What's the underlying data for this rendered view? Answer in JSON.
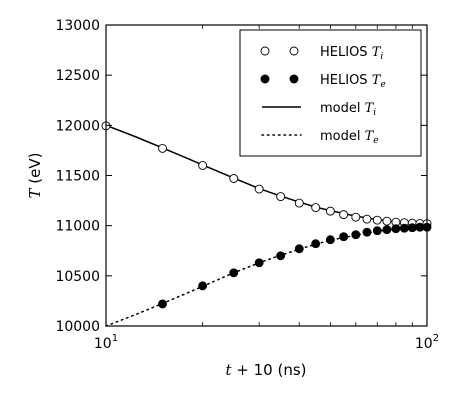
{
  "chart_data": {
    "type": "line",
    "x_scale": "log",
    "xlim": [
      10,
      100
    ],
    "ylim": [
      10000,
      13000
    ],
    "xlabel": {
      "main": "t",
      "rest": " + 10 (ns)"
    },
    "ylabel": {
      "main": "T",
      "rest": " (eV)"
    },
    "x_ticks": [
      {
        "value": 10,
        "base": "10",
        "exp": "1"
      },
      {
        "value": 100,
        "base": "10",
        "exp": "2"
      }
    ],
    "y_ticks": [
      {
        "value": 10000,
        "label": "10000"
      },
      {
        "value": 10500,
        "label": "10500"
      },
      {
        "value": 11000,
        "label": "11000"
      },
      {
        "value": 11500,
        "label": "11500"
      },
      {
        "value": 12000,
        "label": "12000"
      },
      {
        "value": 12500,
        "label": "12500"
      },
      {
        "value": 13000,
        "label": "13000"
      }
    ],
    "grid": false,
    "legend_position": "top-right",
    "series": [
      {
        "name_prefix": "HELIOS ",
        "name_symbol": "T",
        "name_sub": "i",
        "style": "open-circle",
        "x": [
          10,
          15,
          20,
          25,
          30,
          35,
          40,
          45,
          50,
          55,
          60,
          65,
          70,
          75,
          80,
          85,
          90,
          95,
          100
        ],
        "y": [
          11995,
          11770,
          11600,
          11470,
          11365,
          11290,
          11225,
          11180,
          11145,
          11110,
          11085,
          11065,
          11055,
          11045,
          11035,
          11030,
          11025,
          11022,
          11020
        ]
      },
      {
        "name_prefix": "HELIOS ",
        "name_symbol": "T",
        "name_sub": "e",
        "style": "filled-circle",
        "x": [
          15,
          20,
          25,
          30,
          35,
          40,
          45,
          50,
          55,
          60,
          65,
          70,
          75,
          80,
          85,
          90,
          95,
          100
        ],
        "y": [
          10220,
          10400,
          10530,
          10630,
          10700,
          10770,
          10820,
          10860,
          10890,
          10910,
          10935,
          10950,
          10960,
          10970,
          10975,
          10980,
          10985,
          10985
        ]
      },
      {
        "name_prefix": "model ",
        "name_symbol": "T",
        "name_sub": "i",
        "style": "solid",
        "x": [
          10,
          12.5,
          15,
          17.5,
          20,
          25,
          30,
          35,
          40,
          45,
          50,
          60,
          70,
          80,
          90,
          100
        ],
        "y": [
          12000,
          11880,
          11775,
          11685,
          11605,
          11475,
          11370,
          11295,
          11235,
          11185,
          11150,
          11095,
          11060,
          11040,
          11030,
          11020
        ]
      },
      {
        "name_prefix": "model ",
        "name_symbol": "T",
        "name_sub": "e",
        "style": "dotted",
        "x": [
          10,
          12.5,
          15,
          17.5,
          20,
          25,
          30,
          35,
          40,
          45,
          50,
          60,
          70,
          80,
          90,
          100
        ],
        "y": [
          10000,
          10120,
          10225,
          10315,
          10395,
          10530,
          10630,
          10705,
          10765,
          10815,
          10855,
          10905,
          10945,
          10965,
          10978,
          10985
        ]
      }
    ]
  }
}
